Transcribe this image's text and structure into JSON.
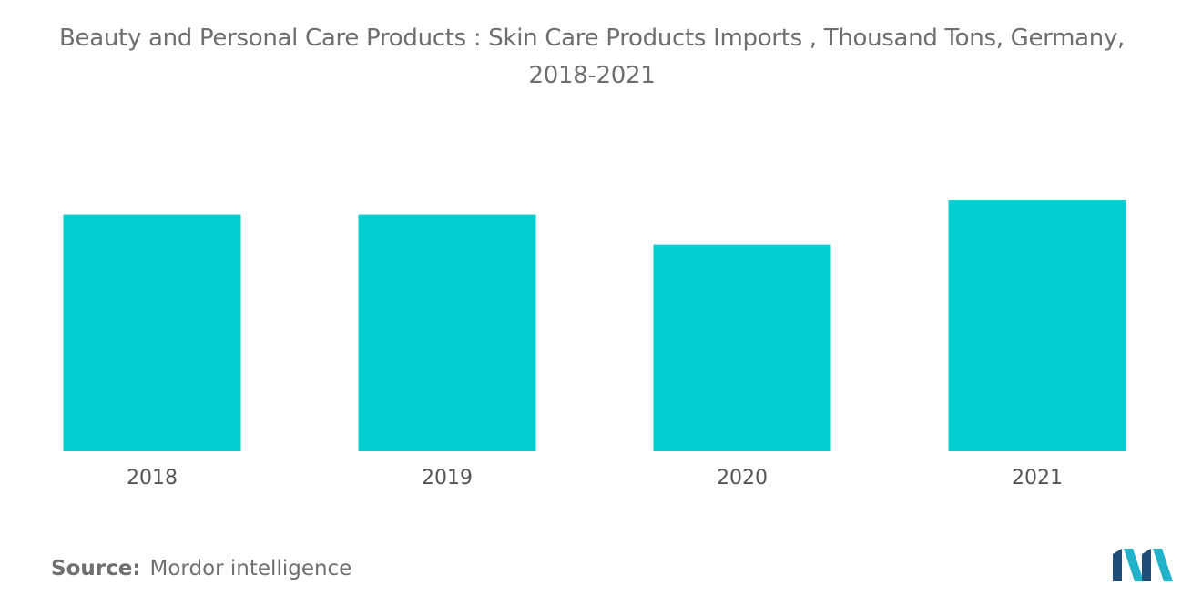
{
  "chart_data": {
    "type": "bar",
    "title_lines": [
      "Beauty and Personal Care Products : Skin Care Products Imports , Thousand Tons, Germany,",
      "2018-2021"
    ],
    "categories": [
      "2018",
      "2019",
      "2020",
      "2021"
    ],
    "values": [
      252,
      252,
      220,
      267
    ],
    "ylim": [
      0,
      300
    ],
    "color": "#00CED1",
    "grid": false,
    "legend": "none"
  },
  "source": {
    "label": "Source:",
    "text": "Mordor intelligence"
  },
  "logo": {
    "icon": "mordor-intelligence-logo",
    "colors": [
      "#1f4e79",
      "#20b2c8"
    ]
  }
}
